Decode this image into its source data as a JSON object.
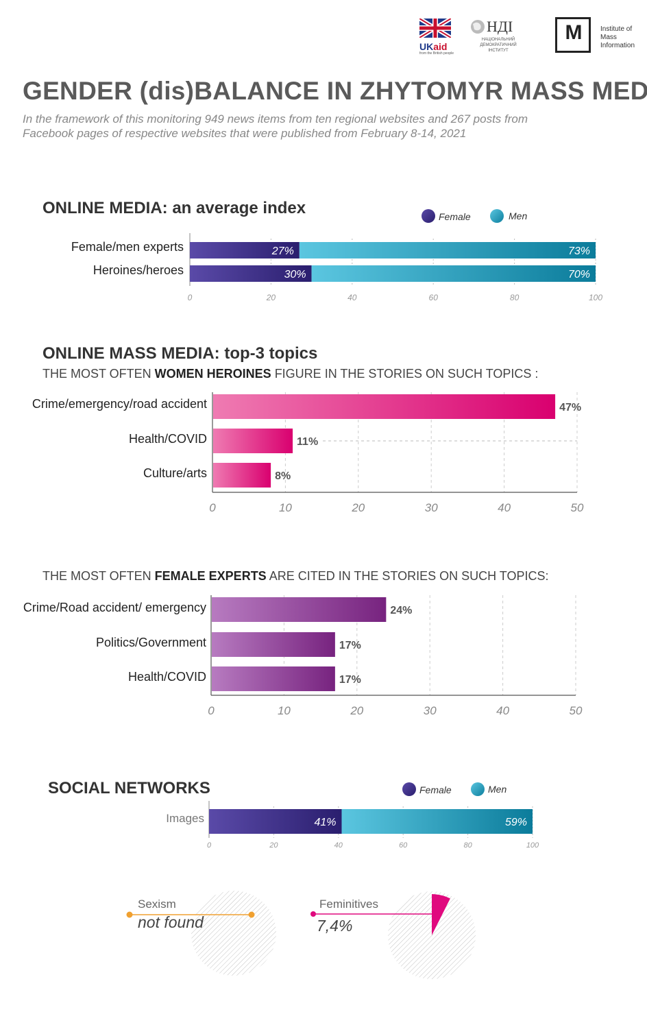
{
  "header": {
    "logos": [
      {
        "name": "uk-aid-logo",
        "text": "UKaid",
        "tagline": "from the British people"
      },
      {
        "name": "ndi-logo",
        "text": "НДІ",
        "tagline": "НАЦІОНАЛЬНИЙ ДЕМОКРАТИЧНИЙ ІНСТИТУТ"
      },
      {
        "name": "imi-logo",
        "text": "Institute of Mass Information",
        "mark": "M"
      }
    ],
    "title": "GENDER (dis)BALANCE IN ZHYTOMYR MASS MEDIA",
    "subtitle_line1": "In the framework of this monitoring 949 news items from ten regional websites and 267 posts from",
    "subtitle_line2": "Facebook pages of respective websites that were published from February 8-14, 2021"
  },
  "colors": {
    "female": "#3b2d87",
    "men": "#2aa5c5",
    "pink": "#e0097e",
    "purple": "#7b2a86",
    "orange": "#f0a030"
  },
  "sections": {
    "online_media": {
      "heading": "ONLINE MEDIA: an average index",
      "legend_female": "Female",
      "legend_men": "Men"
    },
    "top3": {
      "heading": "ONLINE MASS MEDIA: top-3 topics",
      "sub1_pre": "THE MOST OFTEN ",
      "sub1_bold": "WOMEN HEROINES",
      "sub1_post": " FIGURE IN THE STORIES ON SUCH TOPICS :",
      "sub2_pre": "THE MOST OFTEN ",
      "sub2_bold": "FEMALE EXPERTS",
      "sub2_post": " ARE CITED IN THE STORIES ON SUCH TOPICS:"
    },
    "social": {
      "heading": "SOCIAL NETWORKS",
      "legend_female": "Female",
      "legend_men": "Men"
    },
    "sexism": {
      "label": "Sexism",
      "value": "not found"
    },
    "feminitives": {
      "label": "Feminitives",
      "value": "7,4%"
    }
  },
  "chart_data": [
    {
      "type": "bar",
      "orientation": "horizontal-stacked",
      "categories": [
        "Female/men experts",
        "Heroines/heroes"
      ],
      "series": [
        {
          "name": "Female",
          "values": [
            27,
            30
          ],
          "labels": [
            "27%",
            "30%"
          ]
        },
        {
          "name": "Men",
          "values": [
            73,
            70
          ],
          "labels": [
            "73%",
            "70%"
          ]
        }
      ],
      "xlim": [
        0,
        100
      ],
      "xticks": [
        "0",
        "20",
        "40",
        "60",
        "80",
        "100"
      ],
      "legend": "top-right",
      "grid": true
    },
    {
      "type": "bar",
      "orientation": "horizontal",
      "categories": [
        "Crime/emergency/road accident",
        "Health/COVID",
        "Culture/arts"
      ],
      "values": [
        47,
        11,
        8
      ],
      "labels": [
        "47%",
        "11%",
        "8%"
      ],
      "xlim": [
        0,
        50
      ],
      "xticks": [
        "0",
        "10",
        "20",
        "30",
        "40",
        "50"
      ],
      "grid": true
    },
    {
      "type": "bar",
      "orientation": "horizontal",
      "categories": [
        "Crime/Road accident/ emergency",
        "Politics/Government",
        "Health/COVID"
      ],
      "values": [
        24,
        17,
        17
      ],
      "labels": [
        "24%",
        "17%",
        "17%"
      ],
      "xlim": [
        0,
        50
      ],
      "xticks": [
        "0",
        "10",
        "20",
        "30",
        "40",
        "50"
      ],
      "grid": true
    },
    {
      "type": "bar",
      "orientation": "horizontal-stacked",
      "categories": [
        "Images"
      ],
      "series": [
        {
          "name": "Female",
          "values": [
            41
          ],
          "labels": [
            "41%"
          ]
        },
        {
          "name": "Men",
          "values": [
            59
          ],
          "labels": [
            "59%"
          ]
        }
      ],
      "xlim": [
        0,
        100
      ],
      "xticks": [
        "0",
        "20",
        "40",
        "60",
        "80",
        "100"
      ],
      "legend": "top-right",
      "grid": true
    },
    {
      "type": "pie",
      "categories": [
        "Sexism"
      ],
      "values": [
        0
      ],
      "labels": [
        "not found"
      ]
    },
    {
      "type": "pie",
      "categories": [
        "Feminitives"
      ],
      "values": [
        7.4
      ],
      "labels": [
        "7,4%"
      ]
    }
  ]
}
